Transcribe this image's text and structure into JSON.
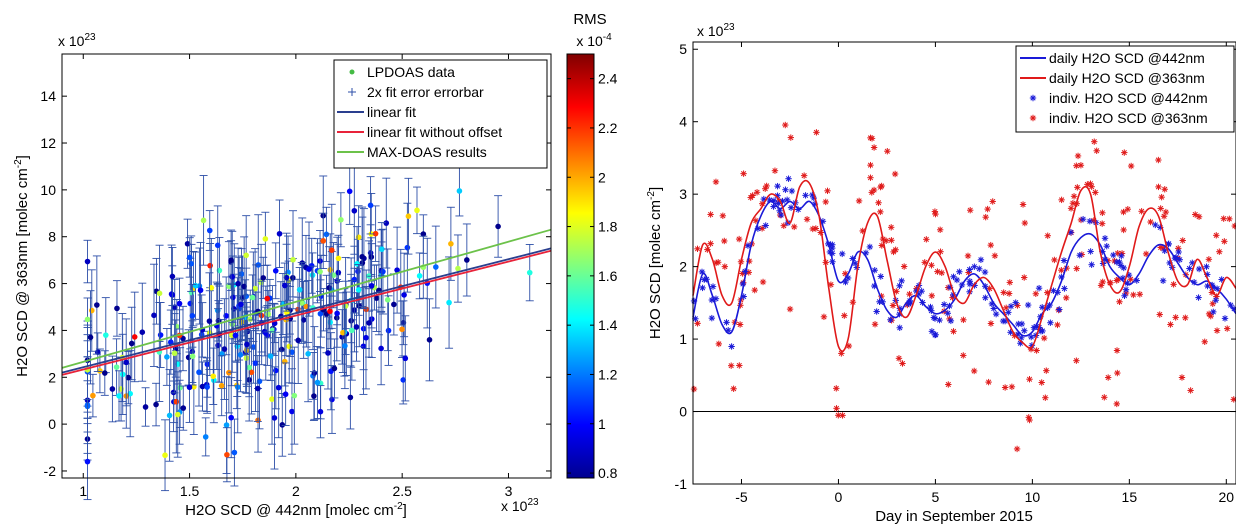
{
  "chart_data": [
    {
      "type": "scatter",
      "xlabel": "H2O SCD @ 442nm [molec cm",
      "xlabel_sup": "-2",
      "xlabel_tail": "]",
      "ylabel": "H2O SCD @ 363nm [molec cm",
      "ylabel_sup": "-2",
      "ylabel_tail": "]",
      "x_exponent": {
        "base": "x 10",
        "exp": "23"
      },
      "y_exponent": {
        "base": "x 10",
        "exp": "23"
      },
      "xlim": [
        0.9,
        3.2
      ],
      "ylim": [
        -2.3,
        15.8
      ],
      "xticks": [
        1,
        1.5,
        2,
        2.5,
        3
      ],
      "xtick_labels": [
        "1",
        "1.5",
        "2",
        "2.5",
        "3"
      ],
      "yticks": [
        -2,
        0,
        2,
        4,
        6,
        8,
        10,
        12,
        14
      ],
      "ytick_labels": [
        "-2",
        "0",
        "2",
        "4",
        "6",
        "8",
        "10",
        "12",
        "14"
      ],
      "legend": {
        "placement": "top-right",
        "entries": [
          {
            "label": "LPDOAS data",
            "marker": "dot",
            "color": "#44bb44"
          },
          {
            "label": "2x fit error errorbar",
            "marker": "plus",
            "color": "#2d4fa8"
          },
          {
            "label": "linear fit",
            "marker": "line",
            "color": "#2a3f8f"
          },
          {
            "label": "linear fit without offset",
            "marker": "line",
            "color": "#e8233a"
          },
          {
            "label": "MAX-DOAS results",
            "marker": "line",
            "color": "#6cc24a"
          }
        ]
      },
      "lines": [
        {
          "name": "linear fit",
          "color": "#2a3f8f",
          "x": [
            0.9,
            3.2
          ],
          "y": [
            2.2,
            7.5
          ]
        },
        {
          "name": "linear fit without offset",
          "color": "#e8233a",
          "x": [
            0.9,
            3.2
          ],
          "y": [
            2.1,
            7.4
          ]
        },
        {
          "name": "MAX-DOAS results",
          "color": "#6cc24a",
          "x": [
            0.9,
            3.2
          ],
          "y": [
            2.4,
            8.3
          ]
        }
      ],
      "colorbar": {
        "title": "RMS",
        "exponent": {
          "base": "x 10",
          "exp": "-4"
        },
        "range": [
          0.78,
          2.5
        ],
        "ticks": [
          0.8,
          1,
          1.2,
          1.4,
          1.6,
          1.8,
          2,
          2.2,
          2.4
        ],
        "tick_labels": [
          "0.8",
          "1",
          "1.2",
          "1.4",
          "1.6",
          "1.8",
          "2",
          "2.2",
          "2.4"
        ],
        "colormap": "jet"
      },
      "points": {
        "count": 320,
        "x_mean": 1.85,
        "x_sd": 0.45,
        "slope": 2.3,
        "intercept": 0.1,
        "y_sd": 2.0,
        "err_min": 0.8,
        "err_max": 2.2,
        "rms_range": [
          0.8,
          2.3
        ]
      }
    },
    {
      "type": "line",
      "xlabel": "Day in September 2015",
      "ylabel": "H2O SCD [molec cm",
      "ylabel_sup": "-2",
      "ylabel_tail": "]",
      "y_exponent": {
        "base": "x 10",
        "exp": "23"
      },
      "xlim": [
        -7.5,
        20.5
      ],
      "ylim": [
        -1,
        5.1
      ],
      "xticks": [
        -5,
        0,
        5,
        10,
        15,
        20
      ],
      "xtick_labels": [
        "-5",
        "0",
        "5",
        "10",
        "15",
        "20"
      ],
      "yticks": [
        -1,
        0,
        1,
        2,
        3,
        4,
        5
      ],
      "ytick_labels": [
        "-1",
        "0",
        "1",
        "2",
        "3",
        "4",
        "5"
      ],
      "zero_line": true,
      "legend": {
        "placement": "top-right",
        "entries": [
          {
            "label": "daily H2O SCD @442nm",
            "marker": "line",
            "color": "#1a1ad8"
          },
          {
            "label": "daily H2O SCD @363nm",
            "marker": "line",
            "color": "#e01a1a"
          },
          {
            "label": "indiv. H2O SCD @442nm",
            "marker": "star",
            "color": "#1a1ad8"
          },
          {
            "label": "indiv. H2O SCD @363nm",
            "marker": "star",
            "color": "#e01a1a"
          }
        ]
      },
      "series": [
        {
          "name": "daily H2O SCD @442nm",
          "color": "#1a1ad8",
          "x": [
            -7.5,
            -7,
            -6.5,
            -6,
            -5.5,
            -5,
            -4.5,
            -4,
            -3.5,
            -3,
            -2.5,
            -2,
            -1.5,
            -1,
            -0.5,
            0,
            0.5,
            1,
            1.5,
            2,
            2.5,
            3,
            3.5,
            4,
            4.5,
            5,
            5.5,
            6,
            6.5,
            7,
            7.5,
            8,
            8.5,
            9,
            9.5,
            10,
            10.5,
            11,
            11.5,
            12,
            12.5,
            13,
            13.5,
            14,
            14.5,
            15,
            15.5,
            16,
            16.5,
            17,
            17.5,
            18,
            18.5,
            19,
            19.5,
            20,
            20.5
          ],
          "y": [
            1.3,
            1.9,
            1.6,
            1.2,
            1.1,
            1.6,
            2.3,
            2.7,
            2.9,
            2.8,
            2.9,
            2.8,
            2.9,
            2.7,
            2.3,
            1.8,
            1.9,
            2.2,
            2.1,
            1.7,
            1.4,
            1.3,
            1.5,
            1.6,
            1.45,
            1.35,
            1.4,
            1.55,
            1.8,
            1.9,
            1.75,
            1.5,
            1.35,
            1.2,
            1.05,
            1.1,
            1.35,
            1.5,
            1.8,
            2.2,
            2.4,
            2.45,
            2.3,
            2.0,
            1.85,
            1.75,
            1.9,
            2.15,
            2.3,
            2.25,
            2.05,
            1.85,
            1.75,
            1.8,
            1.7,
            1.55,
            1.35
          ]
        },
        {
          "name": "daily H2O SCD @363nm",
          "color": "#e01a1a",
          "x": [
            -7.5,
            -7,
            -6.5,
            -6,
            -5.5,
            -5,
            -4.5,
            -4,
            -3.5,
            -3,
            -2.5,
            -2,
            -1.5,
            -1,
            -0.5,
            0,
            0.5,
            1,
            1.5,
            2,
            2.5,
            3,
            3.5,
            4,
            4.5,
            5,
            5.5,
            6,
            6.5,
            7,
            7.5,
            8,
            8.5,
            9,
            9.5,
            10,
            10.5,
            11,
            11.5,
            12,
            12.5,
            13,
            13.5,
            14,
            14.5,
            15,
            15.5,
            16,
            16.5,
            17,
            17.5,
            18,
            18.5,
            19,
            19.5,
            20,
            20.5
          ],
          "y": [
            1.6,
            2.3,
            2.1,
            1.6,
            1.5,
            2.1,
            2.6,
            2.8,
            3.0,
            2.9,
            2.6,
            3.1,
            3.15,
            2.7,
            1.7,
            0.9,
            1.0,
            2.0,
            2.6,
            2.7,
            2.1,
            1.5,
            1.3,
            1.6,
            2.0,
            2.2,
            2.0,
            1.6,
            1.5,
            1.75,
            1.85,
            1.7,
            1.4,
            1.1,
            0.95,
            0.9,
            1.3,
            1.75,
            2.2,
            2.6,
            3.05,
            3.0,
            2.2,
            1.75,
            1.65,
            2.0,
            2.55,
            2.8,
            2.7,
            2.2,
            1.8,
            1.75,
            2.1,
            1.85,
            1.6,
            1.85,
            1.7
          ]
        },
        {
          "name": "indiv. H2O SCD @442nm",
          "color": "#1a1ad8",
          "marker": "star",
          "points_per_unit": 7,
          "scatter_sd": 0.18
        },
        {
          "name": "indiv. H2O SCD @363nm",
          "color": "#e01a1a",
          "marker": "star",
          "points_per_unit": 9,
          "scatter_sd": 0.75
        }
      ]
    }
  ]
}
